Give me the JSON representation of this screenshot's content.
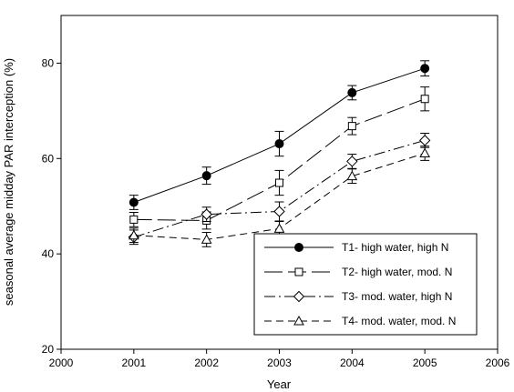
{
  "chart_data": {
    "type": "line",
    "xlabel": "Year",
    "ylabel": "seasonal average midday PAR interception (%)",
    "xlim": [
      2000,
      2006
    ],
    "ylim": [
      20,
      90
    ],
    "xticks": [
      2000,
      2001,
      2002,
      2003,
      2004,
      2005,
      2006
    ],
    "yticks": [
      20,
      40,
      60,
      80
    ],
    "grid": false,
    "legend_position": "bottom-right",
    "x": [
      2001,
      2002,
      2003,
      2004,
      2005
    ],
    "series": [
      {
        "name": "T1- high water, high N",
        "values": [
          50.8,
          56.4,
          63.1,
          73.8,
          78.9
        ],
        "errors": [
          1.5,
          1.8,
          2.6,
          1.5,
          1.6
        ],
        "marker": "circle-filled",
        "dash": "solid"
      },
      {
        "name": "T2- high water, mod. N",
        "values": [
          47.2,
          47.0,
          54.9,
          66.8,
          72.5
        ],
        "errors": [
          1.5,
          1.8,
          2.6,
          1.8,
          2.5
        ],
        "marker": "square-open",
        "dash": "long-dash"
      },
      {
        "name": "T3- mod. water, high N",
        "values": [
          43.5,
          48.3,
          48.9,
          59.4,
          63.8
        ],
        "errors": [
          1.5,
          1.5,
          2.0,
          1.5,
          1.5
        ],
        "marker": "diamond-open",
        "dash": "dash-dot"
      },
      {
        "name": "T4- mod. water, mod. N",
        "values": [
          43.9,
          43.0,
          45.3,
          56.3,
          61.1
        ],
        "errors": [
          1.5,
          1.5,
          1.5,
          1.5,
          1.5
        ],
        "marker": "triangle-open",
        "dash": "short-dash"
      }
    ]
  }
}
